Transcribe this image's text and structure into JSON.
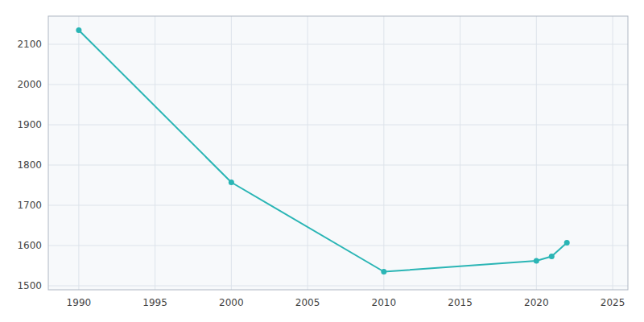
{
  "chart_data": {
    "type": "line",
    "x": [
      1990,
      2000,
      2010,
      2020,
      2021,
      2022
    ],
    "values": [
      2135,
      1757,
      1535,
      1562,
      1573,
      1607
    ],
    "color": "#2ab5b5",
    "marker": "circle",
    "xlim": [
      1988,
      2026
    ],
    "ylim": [
      1490,
      2170
    ],
    "xticks": [
      1990,
      1995,
      2000,
      2005,
      2010,
      2015,
      2020,
      2025
    ],
    "yticks": [
      1500,
      1600,
      1700,
      1800,
      1900,
      2000,
      2100
    ],
    "grid": true
  }
}
